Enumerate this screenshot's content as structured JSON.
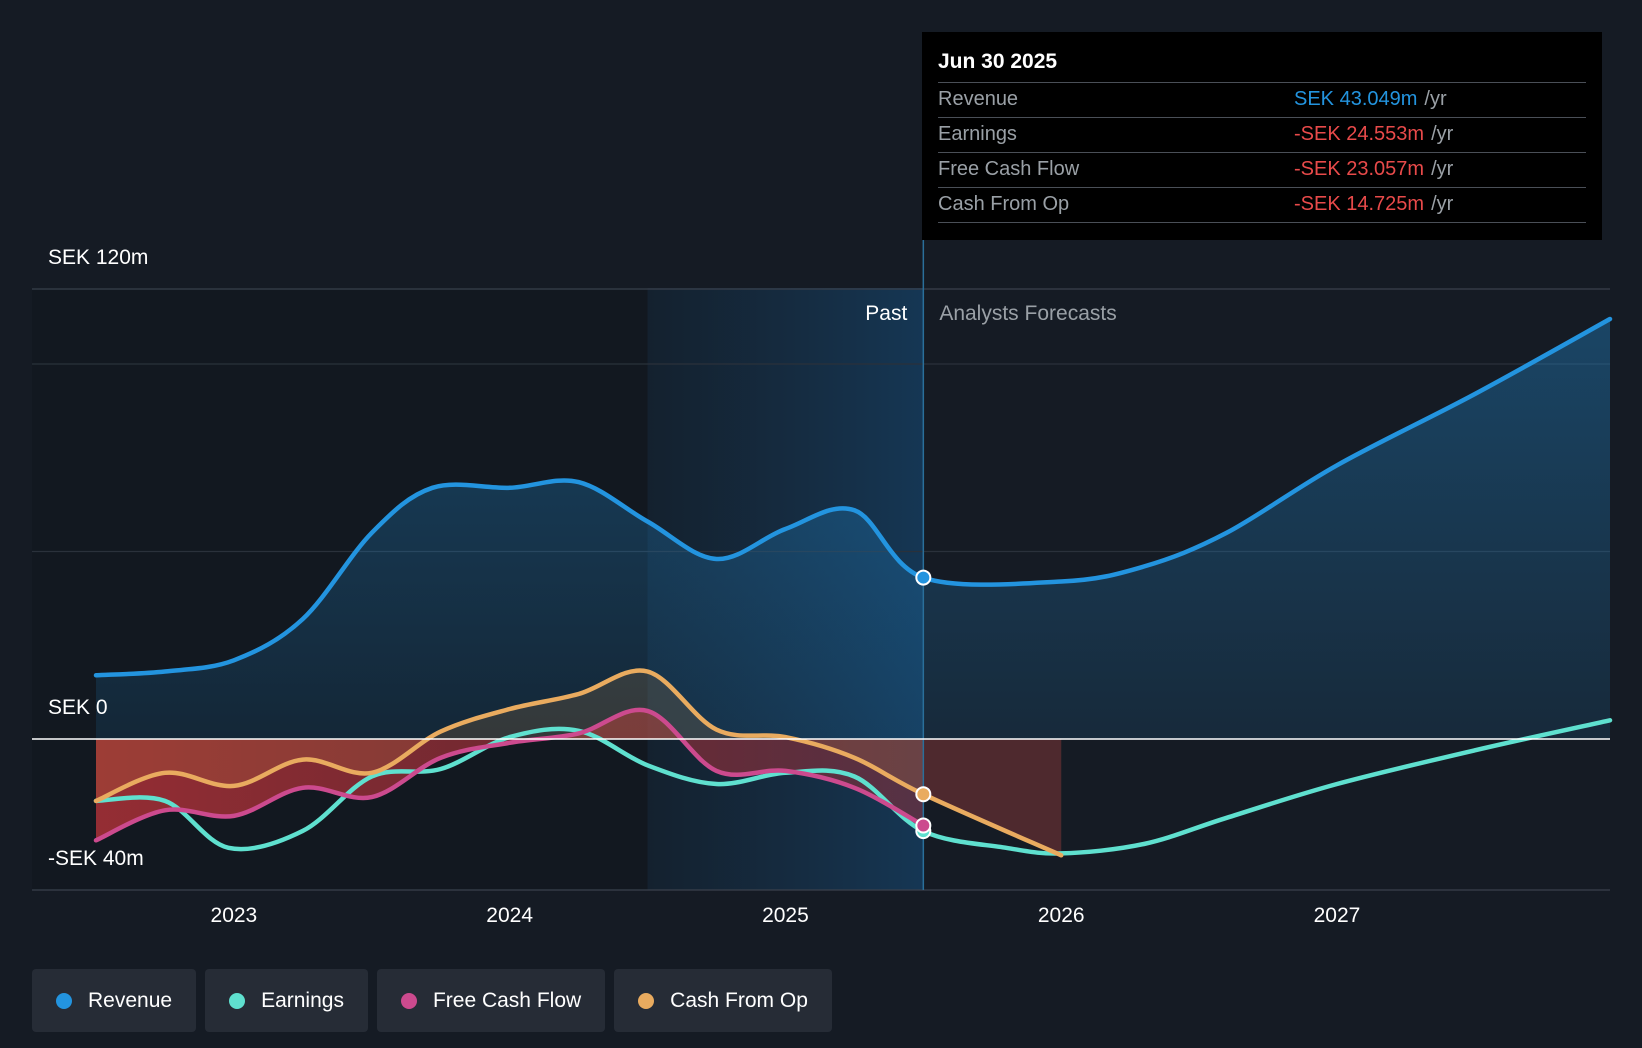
{
  "colors": {
    "revenue": "#2394df",
    "earnings": "#5fe0cf",
    "free_cash_flow": "#cc4a8e",
    "cash_from_op": "#e9ab5f",
    "negative_value": "#e84a4a",
    "background": "#151b24"
  },
  "tooltip": {
    "date": "Jun 30 2025",
    "rows": [
      {
        "label": "Revenue",
        "value": "SEK 43.049m",
        "unit": "/yr",
        "color": "#2394df"
      },
      {
        "label": "Earnings",
        "value": "-SEK 24.553m",
        "unit": "/yr",
        "color": "#e84a4a"
      },
      {
        "label": "Free Cash Flow",
        "value": "-SEK 23.057m",
        "unit": "/yr",
        "color": "#e84a4a"
      },
      {
        "label": "Cash From Op",
        "value": "-SEK 14.725m",
        "unit": "/yr",
        "color": "#e84a4a"
      }
    ]
  },
  "legend": [
    {
      "label": "Revenue",
      "color": "#2394df"
    },
    {
      "label": "Earnings",
      "color": "#5fe0cf"
    },
    {
      "label": "Free Cash Flow",
      "color": "#cc4a8e"
    },
    {
      "label": "Cash From Op",
      "color": "#e9ab5f"
    }
  ],
  "chart_data": {
    "type": "line",
    "y_tick_labels": [
      "SEK 120m",
      "SEK 0",
      "-SEK 40m"
    ],
    "x_tick_labels": [
      "2023",
      "2024",
      "2025",
      "2026",
      "2027"
    ],
    "ylim": [
      -40,
      120
    ],
    "xlim": [
      2022.5,
      2027.99
    ],
    "past_label": "Past",
    "forecast_label": "Analysts Forecasts",
    "divider_x": 2025.5,
    "highlight_start_x": 2024.5,
    "grid": true,
    "legend_position": "bottom-left",
    "series": [
      {
        "name": "Revenue",
        "key": "revenue",
        "points": [
          [
            2022.5,
            17
          ],
          [
            2022.75,
            18
          ],
          [
            2023.0,
            21
          ],
          [
            2023.25,
            32
          ],
          [
            2023.5,
            55
          ],
          [
            2023.72,
            67
          ],
          [
            2024.0,
            67
          ],
          [
            2024.25,
            68.5
          ],
          [
            2024.5,
            58
          ],
          [
            2024.75,
            48
          ],
          [
            2025.0,
            56
          ],
          [
            2025.25,
            61
          ],
          [
            2025.5,
            43.049
          ],
          [
            2026.0,
            42
          ],
          [
            2026.3,
            46
          ],
          [
            2026.6,
            55
          ],
          [
            2027.0,
            73
          ],
          [
            2027.5,
            92
          ],
          [
            2027.99,
            112
          ]
        ]
      },
      {
        "name": "Earnings",
        "key": "earnings",
        "points": [
          [
            2022.5,
            -16.5
          ],
          [
            2022.75,
            -16.5
          ],
          [
            2022.98,
            -29
          ],
          [
            2023.25,
            -24.5
          ],
          [
            2023.5,
            -10
          ],
          [
            2023.75,
            -8
          ],
          [
            2024.0,
            0.5
          ],
          [
            2024.25,
            2.2
          ],
          [
            2024.5,
            -7
          ],
          [
            2024.75,
            -12
          ],
          [
            2025.0,
            -9
          ],
          [
            2025.25,
            -10
          ],
          [
            2025.5,
            -24.553
          ],
          [
            2025.8,
            -29
          ],
          [
            2026.0,
            -30.5
          ],
          [
            2026.3,
            -28
          ],
          [
            2026.6,
            -21
          ],
          [
            2027.0,
            -12
          ],
          [
            2027.5,
            -3
          ],
          [
            2027.99,
            5
          ]
        ]
      },
      {
        "name": "Free Cash Flow",
        "key": "free_cash_flow",
        "points": [
          [
            2022.5,
            -27
          ],
          [
            2022.75,
            -19
          ],
          [
            2023.0,
            -20.5
          ],
          [
            2023.25,
            -13
          ],
          [
            2023.5,
            -15.5
          ],
          [
            2023.75,
            -5
          ],
          [
            2024.0,
            -1
          ],
          [
            2024.25,
            1.5
          ],
          [
            2024.5,
            7.5
          ],
          [
            2024.75,
            -8.5
          ],
          [
            2025.0,
            -8.5
          ],
          [
            2025.25,
            -13
          ],
          [
            2025.5,
            -23.057
          ]
        ]
      },
      {
        "name": "Cash From Op",
        "key": "cash_from_op",
        "points": [
          [
            2022.5,
            -16.5
          ],
          [
            2022.75,
            -9
          ],
          [
            2023.0,
            -12.5
          ],
          [
            2023.25,
            -5.5
          ],
          [
            2023.5,
            -9
          ],
          [
            2023.75,
            2
          ],
          [
            2024.0,
            8
          ],
          [
            2024.25,
            12
          ],
          [
            2024.5,
            18
          ],
          [
            2024.75,
            2.5
          ],
          [
            2025.0,
            0.5
          ],
          [
            2025.25,
            -5
          ],
          [
            2025.5,
            -14.725
          ],
          [
            2026.0,
            -31
          ]
        ]
      }
    ]
  }
}
